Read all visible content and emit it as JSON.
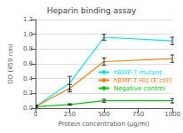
{
  "chart_data": {
    "type": "line",
    "title": "Heparin binding assay",
    "xlabel": "Protein concentration (μg/ml)",
    "ylabel": "OD (450 nm)",
    "x": [
      0,
      250,
      500,
      1000
    ],
    "series": [
      {
        "name": "hBMP-7 mutant",
        "color": "#00e5ff",
        "values": [
          0.02,
          0.34,
          0.96,
          0.91
        ],
        "yerr": [
          0.02,
          0.09,
          0.04,
          0.05
        ]
      },
      {
        "name": "hBMP-7-His (E.coli)",
        "color": "#ff8000",
        "values": [
          0.02,
          0.27,
          0.63,
          0.67
        ],
        "yerr": [
          0.02,
          0.05,
          0.05,
          0.05
        ]
      },
      {
        "name": "Negative control",
        "color": "#00cc00",
        "values": [
          0.02,
          0.05,
          0.1,
          0.1
        ],
        "yerr": [
          0.01,
          0.01,
          0.02,
          0.03
        ]
      }
    ],
    "xlim": [
      0,
      1000
    ],
    "xticks": [
      0,
      250,
      500,
      750,
      1000
    ],
    "ylim": [
      0,
      1.2
    ],
    "yticks": [
      {
        "value": 0.0,
        "label": "0.0"
      },
      0.2,
      0.4,
      0.6,
      0.8,
      {
        "value": 1.0,
        "label": "1.0"
      },
      1.2
    ],
    "grid": true,
    "legend": "right"
  }
}
